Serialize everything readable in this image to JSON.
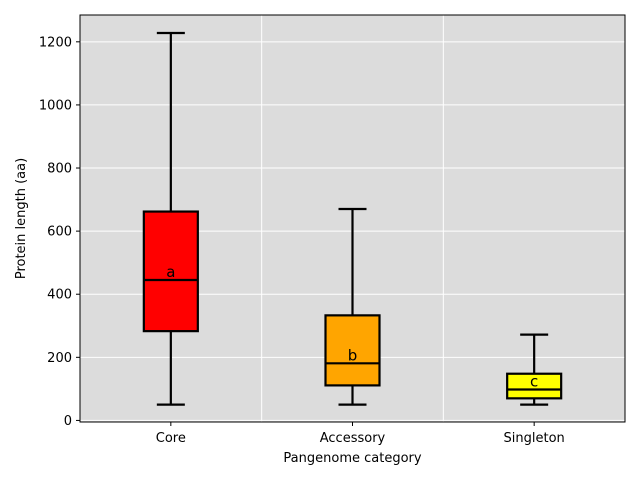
{
  "chart_data": {
    "type": "box",
    "xlabel": "Pangenome category",
    "ylabel": "Protein length (aa)",
    "ylim": [
      -5,
      1285
    ],
    "yticks": [
      0,
      200,
      400,
      600,
      800,
      1000,
      1200
    ],
    "grid": true,
    "categories": [
      "Core",
      "Accessory",
      "Singleton"
    ],
    "boxes": [
      {
        "category": "Core",
        "whisker_low": 50,
        "q1": 283,
        "median": 445,
        "q3": 662,
        "whisker_high": 1228,
        "color": "#ff0000",
        "letter": "a"
      },
      {
        "category": "Accessory",
        "whisker_low": 50,
        "q1": 111,
        "median": 181,
        "q3": 333,
        "whisker_high": 670,
        "color": "#ffa500",
        "letter": "b"
      },
      {
        "category": "Singleton",
        "whisker_low": 50,
        "q1": 70,
        "median": 98,
        "q3": 148,
        "whisker_high": 272,
        "color": "#ffff00",
        "letter": "c"
      }
    ]
  },
  "colors": {
    "plot_background": "#dcdcdc",
    "grid": "#ffffff"
  }
}
